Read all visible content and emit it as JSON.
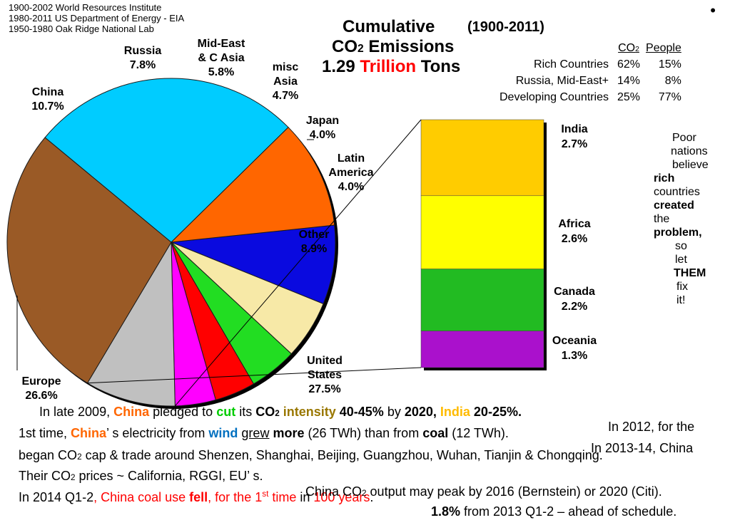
{
  "sources": [
    "1900-2002 World Resources Institute",
    "1980-2011 US Department of Energy - EIA",
    "1950-1980 Oak Ridge National Lab"
  ],
  "bullet": "•",
  "title": {
    "line1": "Cumulative",
    "years": "(1900-2011)",
    "line2a": "CO",
    "line2sub": "2",
    "line2b": " Emissions",
    "line3a": "1.29 ",
    "line3red": "Trillion",
    "line3b": " Tons"
  },
  "share_table": {
    "headers": [
      "CO2",
      "People"
    ],
    "rows": [
      {
        "label": "Rich Countries",
        "co2": "62%",
        "people": "15%"
      },
      {
        "label": "Russia, Mid-East+",
        "co2": "14%",
        "people": "8%"
      },
      {
        "label": "Developing Countries",
        "co2": "25%",
        "people": "77%"
      }
    ]
  },
  "chart_data": [
    {
      "type": "pie",
      "slices": [
        {
          "label": "Russia",
          "value": 7.8,
          "text": "Russia\n7.8%",
          "color": "#0a0adf"
        },
        {
          "label": "Mid-East & C Asia",
          "value": 5.8,
          "text": "Mid-East\n& C Asia\n5.8%",
          "color": "#f7e9a7"
        },
        {
          "label": "misc Asia",
          "value": 4.7,
          "text": "misc\nAsia\n4.7%",
          "color": "#22dd22"
        },
        {
          "label": "Japan",
          "value": 4.0,
          "text": "Japan\n4.0%",
          "color": "#ff0000"
        },
        {
          "label": "Latin America",
          "value": 4.0,
          "text": "Latin\nAmerica\n4.0%",
          "color": "#ff00ff"
        },
        {
          "label": "Other",
          "value": 8.9,
          "text": "Other\n8.9%",
          "color": "#c0c0c0"
        },
        {
          "label": "United States",
          "value": 27.5,
          "text": "United\nStates\n27.5%",
          "color": "#9a5a26"
        },
        {
          "label": "Europe",
          "value": 26.6,
          "text": "Europe\n26.6%",
          "color": "#00ccff"
        },
        {
          "label": "China",
          "value": 10.7,
          "text": "China\n10.7%",
          "color": "#ff6600"
        }
      ]
    },
    {
      "type": "bar",
      "stacked": true,
      "segments": [
        {
          "label": "India",
          "value": 2.7,
          "text_name": "India",
          "text_value": "2.7%",
          "color": "#ffcc00"
        },
        {
          "label": "Africa",
          "value": 2.6,
          "text_name": "Africa",
          "text_value": "2.6%",
          "color": "#ffff00"
        },
        {
          "label": "Canada",
          "value": 2.2,
          "text_name": "Canada",
          "text_value": "2.2%",
          "color": "#22bb22"
        },
        {
          "label": "Oceania",
          "value": 1.3,
          "text_name": "Oceania",
          "text_value": "1.3%",
          "color": "#aa11cc"
        }
      ]
    }
  ],
  "poor_nations": [
    "Poor",
    "nations",
    "believe",
    "rich",
    "countries",
    "created",
    "the",
    "problem,",
    "so",
    "let",
    "THEM",
    "fix",
    "it!"
  ],
  "notes": {
    "line1": {
      "a": "In late 2009, ",
      "china": "China",
      "b": " pledged to ",
      "cut": "cut",
      "c": " its ",
      "co2": "CO",
      "sub": "2",
      "d": " ",
      "intensity": "intensity",
      "e": " ",
      "pct": "40-45%",
      "f": " by ",
      "year": "2020,",
      "g": " ",
      "india": "India",
      "h": " ",
      "ipct": "20-25%."
    },
    "line2": {
      "a": "1st time, ",
      "china": "China",
      "b": "’ s electricity from ",
      "wind": "wind",
      "c": " ",
      "grew": "grew",
      "d": " ",
      "more": "more",
      "e": " (26 TWh) than from ",
      "coal": "coal",
      "f": " (12 TWh)."
    },
    "line3": {
      "a": "began CO",
      "sub": "2",
      "b": " cap & trade around Shenzen, Shanghai, Beijing, Guangzhou, Wuhan, Tianjin & Chongqing."
    },
    "line4": {
      "a": "Their CO",
      "sub": "2",
      "b": " prices ~ California, RGGI, EU’ s."
    },
    "line5": {
      "a": "In 2014 Q1-2",
      "b": ", China coal use ",
      "fell": "fell",
      "c": ", for the ",
      "first": "1",
      "st": "st",
      "time": " time",
      "d": " in ",
      "years": "100 years",
      "e": "."
    },
    "overlay1": "In 2012, for the",
    "overlay2": "In 2013-14, China",
    "overlay3a": "China CO",
    "overlay3sub": "2",
    "overlay3b": " output may peak by 2016 (Bernstein) or 2020 (Citi).",
    "overlay4a": "1.8%",
    "overlay4b": " from 2013 Q1-2 – ahead of schedule."
  }
}
